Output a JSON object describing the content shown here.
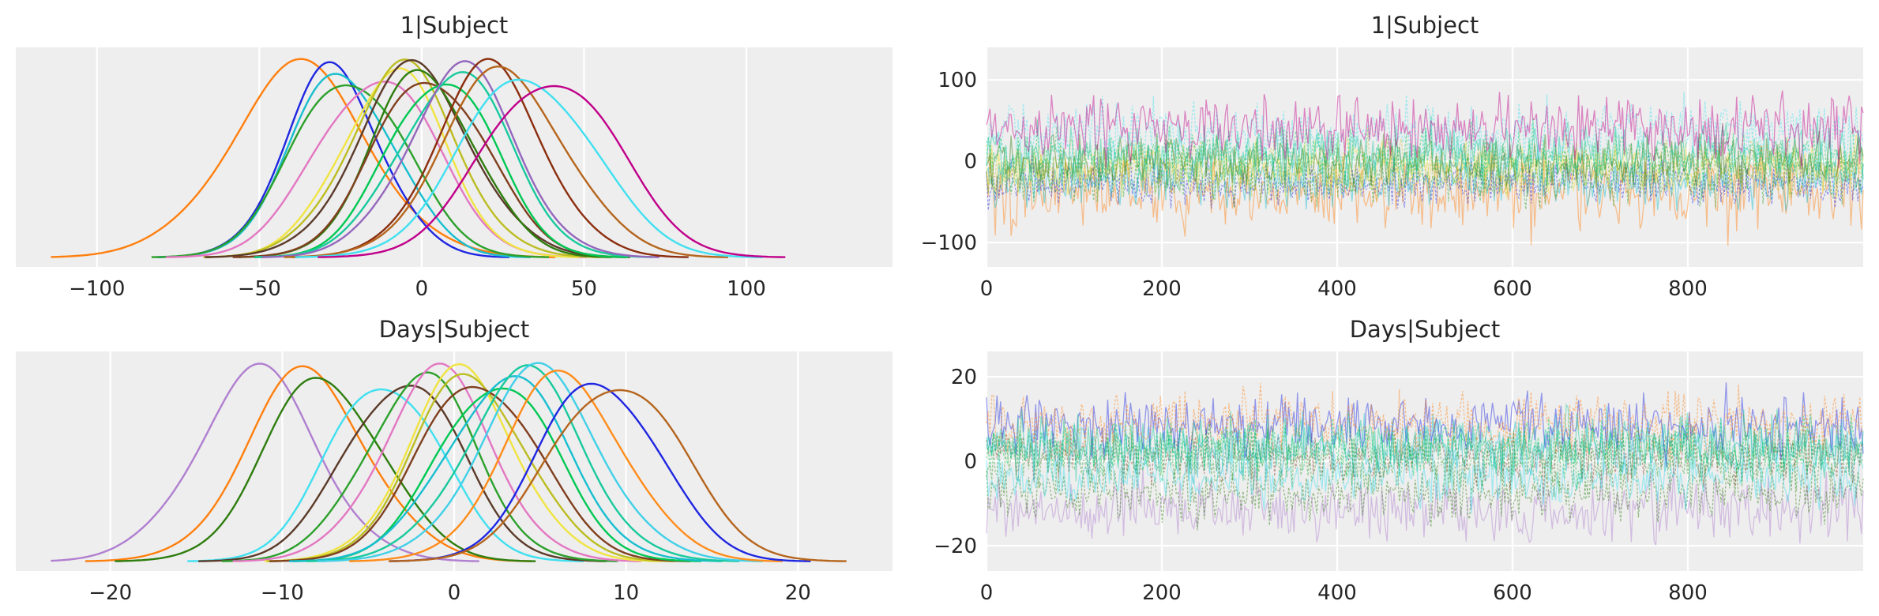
{
  "chart_data": [
    {
      "type": "line",
      "panel": "density",
      "title": "1|Subject",
      "xlim": [
        -125,
        145
      ],
      "xticks": [
        -100,
        -50,
        0,
        50,
        100
      ],
      "xtick_labels": [
        "−100",
        "−50",
        "0",
        "50",
        "100"
      ],
      "grid": true,
      "series": [
        {
          "color": "#ff7f0e",
          "mean": -38,
          "sd": 22
        },
        {
          "color": "#1f27e0",
          "mean": -27,
          "sd": 15
        },
        {
          "color": "#17becf",
          "mean": -24,
          "sd": 16
        },
        {
          "color": "#2ca02c",
          "mean": -22,
          "sd": 17
        },
        {
          "color": "#e377c2",
          "mean": -14,
          "sd": 18
        },
        {
          "color": "#f0e442",
          "mean": -9,
          "sd": 16
        },
        {
          "color": "#bcbd22",
          "mean": -6,
          "sd": 17
        },
        {
          "color": "#5b3a29",
          "mean": -2,
          "sd": 18
        },
        {
          "color": "#2e7d0e",
          "mean": 1,
          "sd": 16
        },
        {
          "color": "#7f3f1f",
          "mean": 3,
          "sd": 17
        },
        {
          "color": "#00c853",
          "mean": 6,
          "sd": 16
        },
        {
          "color": "#18c99d",
          "mean": 10,
          "sd": 17
        },
        {
          "color": "#9467bd",
          "mean": 12,
          "sd": 17
        },
        {
          "color": "#8b2e0f",
          "mean": 21,
          "sd": 17
        },
        {
          "color": "#b5651d",
          "mean": 26,
          "sd": 19
        },
        {
          "color": "#40e0f0",
          "mean": 33,
          "sd": 20
        },
        {
          "color": "#c0008a",
          "mean": 40,
          "sd": 20
        }
      ]
    },
    {
      "type": "line",
      "panel": "trace",
      "title": "1|Subject",
      "xlim": [
        0,
        1000
      ],
      "ylim": [
        -130,
        140
      ],
      "xticks": [
        0,
        200,
        400,
        600,
        800
      ],
      "xtick_labels": [
        "0",
        "200",
        "400",
        "600",
        "800"
      ],
      "yticks": [
        -100,
        0,
        100
      ],
      "ytick_labels": [
        "−100",
        "0",
        "100"
      ],
      "grid": true,
      "series": [
        {
          "color": "#ff7f0e",
          "mean": -38,
          "sd": 22
        },
        {
          "color": "#1f27e0",
          "mean": -27,
          "sd": 15
        },
        {
          "color": "#17becf",
          "mean": -24,
          "sd": 16
        },
        {
          "color": "#2ca02c",
          "mean": -22,
          "sd": 17
        },
        {
          "color": "#f0e442",
          "mean": -9,
          "sd": 16
        },
        {
          "color": "#bcbd22",
          "mean": -6,
          "sd": 17
        },
        {
          "color": "#2e7d0e",
          "mean": 1,
          "sd": 16
        },
        {
          "color": "#00c853",
          "mean": 6,
          "sd": 16
        },
        {
          "color": "#18c99d",
          "mean": 10,
          "sd": 17
        },
        {
          "color": "#40e0f0",
          "mean": 33,
          "sd": 20
        },
        {
          "color": "#c0008a",
          "mean": 40,
          "sd": 20
        }
      ]
    },
    {
      "type": "line",
      "panel": "density",
      "title": "Days|Subject",
      "xlim": [
        -25.5,
        25.5
      ],
      "xticks": [
        -20,
        -10,
        0,
        10,
        20
      ],
      "xtick_labels": [
        "−20",
        "−10",
        "0",
        "10",
        "20"
      ],
      "grid": true,
      "series": [
        {
          "color": "#b07fd0",
          "mean": -11.5,
          "sd": 3.6
        },
        {
          "color": "#ff7f0e",
          "mean": -8.5,
          "sd": 3.6
        },
        {
          "color": "#2e7d0e",
          "mean": -7.5,
          "sd": 3.4
        },
        {
          "color": "#40e0f0",
          "mean": -4,
          "sd": 3.2
        },
        {
          "color": "#5b3a29",
          "mean": -3,
          "sd": 3.3
        },
        {
          "color": "#2ca02c",
          "mean": -2,
          "sd": 3.2
        },
        {
          "color": "#e377c2",
          "mean": -1,
          "sd": 3.3
        },
        {
          "color": "#f0e442",
          "mean": 0.5,
          "sd": 3.2
        },
        {
          "color": "#bcbd22",
          "mean": 1,
          "sd": 3.3
        },
        {
          "color": "#7f3f1f",
          "mean": 1.5,
          "sd": 3.4
        },
        {
          "color": "#00c853",
          "mean": 2.5,
          "sd": 3.3
        },
        {
          "color": "#17becf",
          "mean": 3,
          "sd": 3.5
        },
        {
          "color": "#18c99d",
          "mean": 4,
          "sd": 3.5
        },
        {
          "color": "#40d0e8",
          "mean": 5,
          "sd": 3.6
        },
        {
          "color": "#ff8c1a",
          "mean": 6.5,
          "sd": 3.5
        },
        {
          "color": "#1f27e0",
          "mean": 8.5,
          "sd": 3.4
        },
        {
          "color": "#b5651d",
          "mean": 9.5,
          "sd": 3.7
        }
      ]
    },
    {
      "type": "line",
      "panel": "trace",
      "title": "Days|Subject",
      "xlim": [
        0,
        1000
      ],
      "ylim": [
        -26,
        26
      ],
      "xticks": [
        0,
        200,
        400,
        600,
        800
      ],
      "xtick_labels": [
        "0",
        "200",
        "400",
        "600",
        "800"
      ],
      "yticks": [
        -20,
        0,
        20
      ],
      "ytick_labels": [
        "−20",
        "0",
        "20"
      ],
      "grid": true,
      "series": [
        {
          "color": "#b07fd0",
          "mean": -11.5,
          "sd": 3.6
        },
        {
          "color": "#2e7d0e",
          "mean": -7.5,
          "sd": 3.4
        },
        {
          "color": "#40e0f0",
          "mean": -4,
          "sd": 3.2
        },
        {
          "color": "#7f3f1f",
          "mean": 1.5,
          "sd": 3.4
        },
        {
          "color": "#17becf",
          "mean": 3,
          "sd": 3.5
        },
        {
          "color": "#2ca02c",
          "mean": 0,
          "sd": 3.3
        },
        {
          "color": "#1f27e0",
          "mean": 8.5,
          "sd": 3.4
        },
        {
          "color": "#ff7f0e",
          "mean": 9,
          "sd": 3.5
        },
        {
          "color": "#18c99d",
          "mean": 4,
          "sd": 3.5
        },
        {
          "color": "#00c853",
          "mean": 2.5,
          "sd": 3.3
        }
      ]
    }
  ]
}
